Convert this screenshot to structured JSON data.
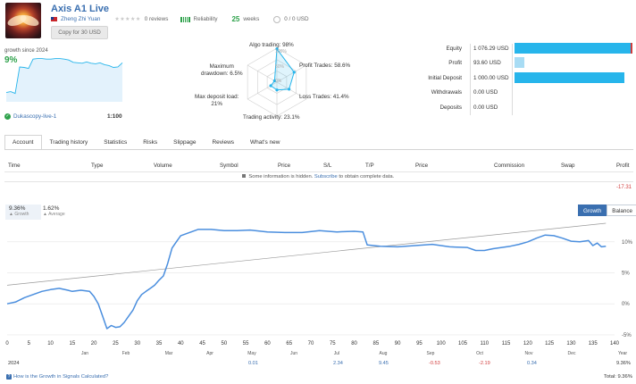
{
  "header": {
    "title": "Axis A1 Live",
    "author": "Zheng Zhi Yuan",
    "reviews": "0 reviews",
    "reliability": "Reliability",
    "weeks_num": "25",
    "weeks_label": "weeks",
    "subscribers": "0 / 0 USD",
    "copy_button": "Copy for 30 USD"
  },
  "summary": {
    "growth_since": "growth since 2024",
    "growth_pct": "9%",
    "account": "Dukascopy-live-1",
    "leverage": "1:100",
    "mini_series": [
      0.2,
      0.22,
      0.18,
      0.75,
      0.74,
      0.72,
      0.92,
      0.93,
      0.93,
      0.92,
      0.92,
      0.93,
      0.93,
      0.92,
      0.9,
      0.85,
      0.84,
      0.83,
      0.86,
      0.83,
      0.82,
      0.84,
      0.8,
      0.78,
      0.74,
      0.75,
      0.84
    ]
  },
  "radar": {
    "algo": "Algo trading: 98%",
    "profit_trades": "Profit Trades: 58.6%",
    "loss_trades": "Loss Trades: 41.4%",
    "activity": "Trading activity: 23.1%",
    "max_deposit": "Max deposit load:",
    "max_deposit_val": "21%",
    "max_drawdown": "Maximum",
    "max_drawdown2": "drawdown: 6.5%",
    "rings": [
      "100%",
      "50%",
      "0%"
    ],
    "values": [
      0.98,
      0.586,
      0.414,
      0.231,
      0.21,
      0.065
    ]
  },
  "stats": [
    {
      "label": "Equity",
      "value": "1 076.29 USD",
      "fill": 1.0,
      "color": "#27b5eb"
    },
    {
      "label": "Profit",
      "value": "93.60 USD",
      "fill": 0.087,
      "color": "#a8dcf4"
    },
    {
      "label": "Initial Deposit",
      "value": "1 000.00 USD",
      "fill": 0.93,
      "color": "#27b5eb"
    },
    {
      "label": "Withdrawals",
      "value": "0.00 USD",
      "fill": 0,
      "color": "#27b5eb"
    },
    {
      "label": "Deposits",
      "value": "0.00 USD",
      "fill": 0,
      "color": "#27b5eb"
    }
  ],
  "tabs": [
    "Account",
    "Trading history",
    "Statistics",
    "Risks",
    "Slippage",
    "Reviews",
    "What's new"
  ],
  "table": {
    "headers": [
      "Time",
      "Type",
      "Volume",
      "Symbol",
      "Price",
      "S/L",
      "T/P",
      "Price",
      "Commission",
      "Swap",
      "Profit"
    ],
    "hidden_note_pre": "Some information is hidden.",
    "hidden_note_link": "Subscribe",
    "hidden_note_post": "to obtain complete data.",
    "total_profit": "-17.31"
  },
  "growth": {
    "growth_val": "9.36%",
    "growth_lbl": "Growth",
    "avg_val": "1.62%",
    "avg_lbl": "Average",
    "btn_growth": "Growth",
    "btn_balance": "Balance"
  },
  "chart_data": {
    "type": "line",
    "x_ticks": [
      "0",
      "5",
      "10",
      "15",
      "20",
      "25",
      "30",
      "35",
      "40",
      "45",
      "50",
      "55",
      "60",
      "65",
      "70",
      "75",
      "80",
      "85",
      "90",
      "95",
      "100",
      "105",
      "110",
      "115",
      "120",
      "125",
      "130",
      "135",
      "140"
    ],
    "months": [
      "Jan",
      "Feb",
      "Mar",
      "Apr",
      "May",
      "Jun",
      "Jul",
      "Aug",
      "Sep",
      "Oct",
      "Nov",
      "Dec",
      "Year"
    ],
    "y_ticks": [
      "10%",
      "5%",
      "0%",
      "-5%"
    ],
    "ylim": [
      -5.3,
      13
    ],
    "xlim": [
      0,
      140
    ],
    "series": [
      {
        "values": [
          [
            0,
            0.0
          ],
          [
            2,
            0.3
          ],
          [
            4,
            1.0
          ],
          [
            6,
            1.5
          ],
          [
            8,
            2.0
          ],
          [
            10,
            2.3
          ],
          [
            12,
            2.5
          ],
          [
            14,
            2.2
          ],
          [
            15,
            2.0
          ],
          [
            17,
            2.2
          ],
          [
            19,
            2.0
          ],
          [
            20,
            1.2
          ],
          [
            21,
            0.0
          ],
          [
            22,
            -2.0
          ],
          [
            23,
            -4.0
          ],
          [
            24,
            -3.5
          ],
          [
            25,
            -3.8
          ],
          [
            26,
            -3.7
          ],
          [
            27,
            -3.0
          ],
          [
            28,
            -2.0
          ],
          [
            29,
            -1.0
          ],
          [
            30,
            0.5
          ],
          [
            31,
            1.5
          ],
          [
            32,
            2.0
          ],
          [
            33,
            2.5
          ],
          [
            34,
            3.0
          ],
          [
            35,
            3.8
          ],
          [
            36,
            4.5
          ],
          [
            37,
            6.5
          ],
          [
            38,
            9.0
          ],
          [
            39,
            10.0
          ],
          [
            40,
            11.0
          ],
          [
            42,
            11.5
          ],
          [
            44,
            12.0
          ],
          [
            47,
            12.0
          ],
          [
            50,
            11.8
          ],
          [
            53,
            11.8
          ],
          [
            56,
            11.9
          ],
          [
            60,
            11.6
          ],
          [
            64,
            11.5
          ],
          [
            68,
            11.5
          ],
          [
            72,
            11.8
          ],
          [
            76,
            11.6
          ],
          [
            80,
            11.7
          ],
          [
            82,
            11.6
          ],
          [
            83,
            9.5
          ],
          [
            86,
            9.3
          ],
          [
            90,
            9.2
          ],
          [
            94,
            9.4
          ],
          [
            98,
            9.6
          ],
          [
            102,
            9.2
          ],
          [
            106,
            9.1
          ],
          [
            108,
            8.6
          ],
          [
            110,
            8.6
          ],
          [
            112,
            8.9
          ],
          [
            114,
            9.1
          ],
          [
            116,
            9.3
          ],
          [
            118,
            9.6
          ],
          [
            120,
            10.0
          ],
          [
            122,
            10.6
          ],
          [
            124,
            11.1
          ],
          [
            126,
            11.0
          ],
          [
            128,
            10.6
          ],
          [
            130,
            10.1
          ],
          [
            132,
            10.0
          ],
          [
            134,
            10.2
          ],
          [
            135,
            9.4
          ],
          [
            136,
            9.8
          ],
          [
            137,
            9.2
          ],
          [
            138,
            9.3
          ]
        ]
      },
      {
        "values": [
          [
            0,
            3.0
          ],
          [
            138,
            13.0
          ]
        ]
      }
    ],
    "year": "2024",
    "monthly": {
      "May": "0.01",
      "Jul": "2.34",
      "Aug": "9.45",
      "Sep": "-0.53",
      "Oct": "-2.19",
      "Nov": "0.34",
      "Year": "9.36%"
    }
  },
  "footer": {
    "how_link": "How is the Growth in Signals Calculated?",
    "total": "Total: 9.36%"
  },
  "colors": {
    "accent": "#3a6fb0",
    "green": "#2da14a",
    "equity_bar": "#27b5eb",
    "negative": "#d23c3c",
    "line": "#4a8ede"
  }
}
